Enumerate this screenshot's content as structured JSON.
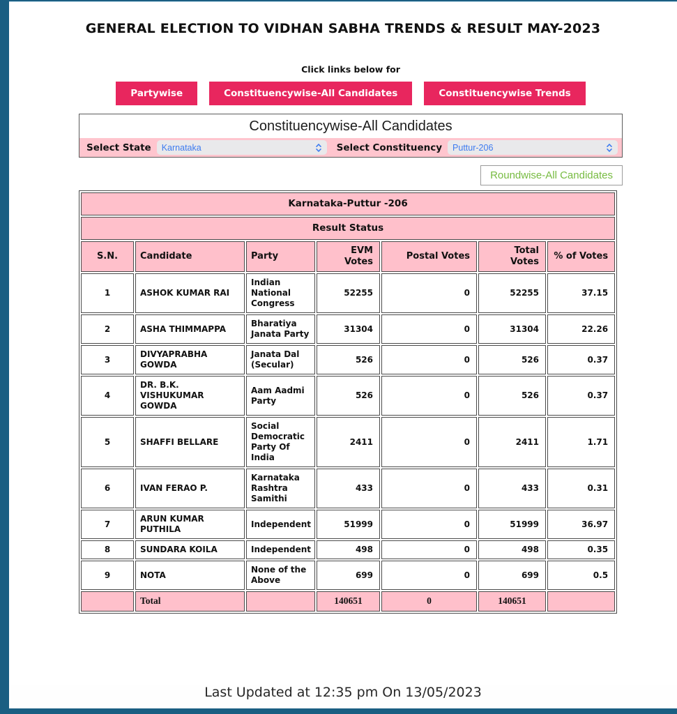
{
  "page": {
    "title": "GENERAL ELECTION TO VIDHAN SABHA TRENDS & RESULT MAY-2023",
    "links_caption": "Click links below for",
    "footer": "Last Updated at 12:35 pm On 13/05/2023"
  },
  "nav_buttons": [
    {
      "label": "Partywise"
    },
    {
      "label": "Constituencywise-All Candidates"
    },
    {
      "label": "Constituencywise Trends"
    }
  ],
  "selector_panel": {
    "heading": "Constituencywise-All Candidates",
    "state_label": "Select State",
    "state_value": "Karnataka",
    "constituency_label": "Select Constituency",
    "constituency_value": "Puttur-206"
  },
  "roundwise_link": "Roundwise-All Candidates",
  "result_table": {
    "title": "Karnataka-Puttur -206",
    "subtitle": "Result Status",
    "columns": [
      "S.N.",
      "Candidate",
      "Party",
      "EVM Votes",
      "Postal Votes",
      "Total Votes",
      "% of Votes"
    ],
    "rows": [
      [
        "1",
        "ASHOK KUMAR RAI",
        "Indian National Congress",
        "52255",
        "0",
        "52255",
        "37.15"
      ],
      [
        "2",
        "ASHA THIMMAPPA",
        "Bharatiya Janata Party",
        "31304",
        "0",
        "31304",
        "22.26"
      ],
      [
        "3",
        "DIVYAPRABHA GOWDA",
        "Janata Dal (Secular)",
        "526",
        "0",
        "526",
        "0.37"
      ],
      [
        "4",
        "DR. B.K. VISHUKUMAR GOWDA",
        "Aam Aadmi Party",
        "526",
        "0",
        "526",
        "0.37"
      ],
      [
        "5",
        "SHAFFI BELLARE",
        "Social Democratic Party Of India",
        "2411",
        "0",
        "2411",
        "1.71"
      ],
      [
        "6",
        "IVAN FERAO P.",
        "Karnataka Rashtra Samithi",
        "433",
        "0",
        "433",
        "0.31"
      ],
      [
        "7",
        "ARUN KUMAR PUTHILA",
        "Independent",
        "51999",
        "0",
        "51999",
        "36.97"
      ],
      [
        "8",
        "SUNDARA KOILA",
        "Independent",
        "498",
        "0",
        "498",
        "0.35"
      ],
      [
        "9",
        "NOTA",
        "None of the Above",
        "699",
        "0",
        "699",
        "0.5"
      ]
    ],
    "total": {
      "label": "Total",
      "evm": "140651",
      "postal": "0",
      "total_votes": "140651"
    }
  },
  "colors": {
    "frame": "#1a5e82",
    "accent": "#e8265e",
    "pink": "#ffc0cb",
    "pinkrow": "#ffc5ce",
    "green": "#77bb41",
    "selectblue": "#3d7bf0"
  }
}
